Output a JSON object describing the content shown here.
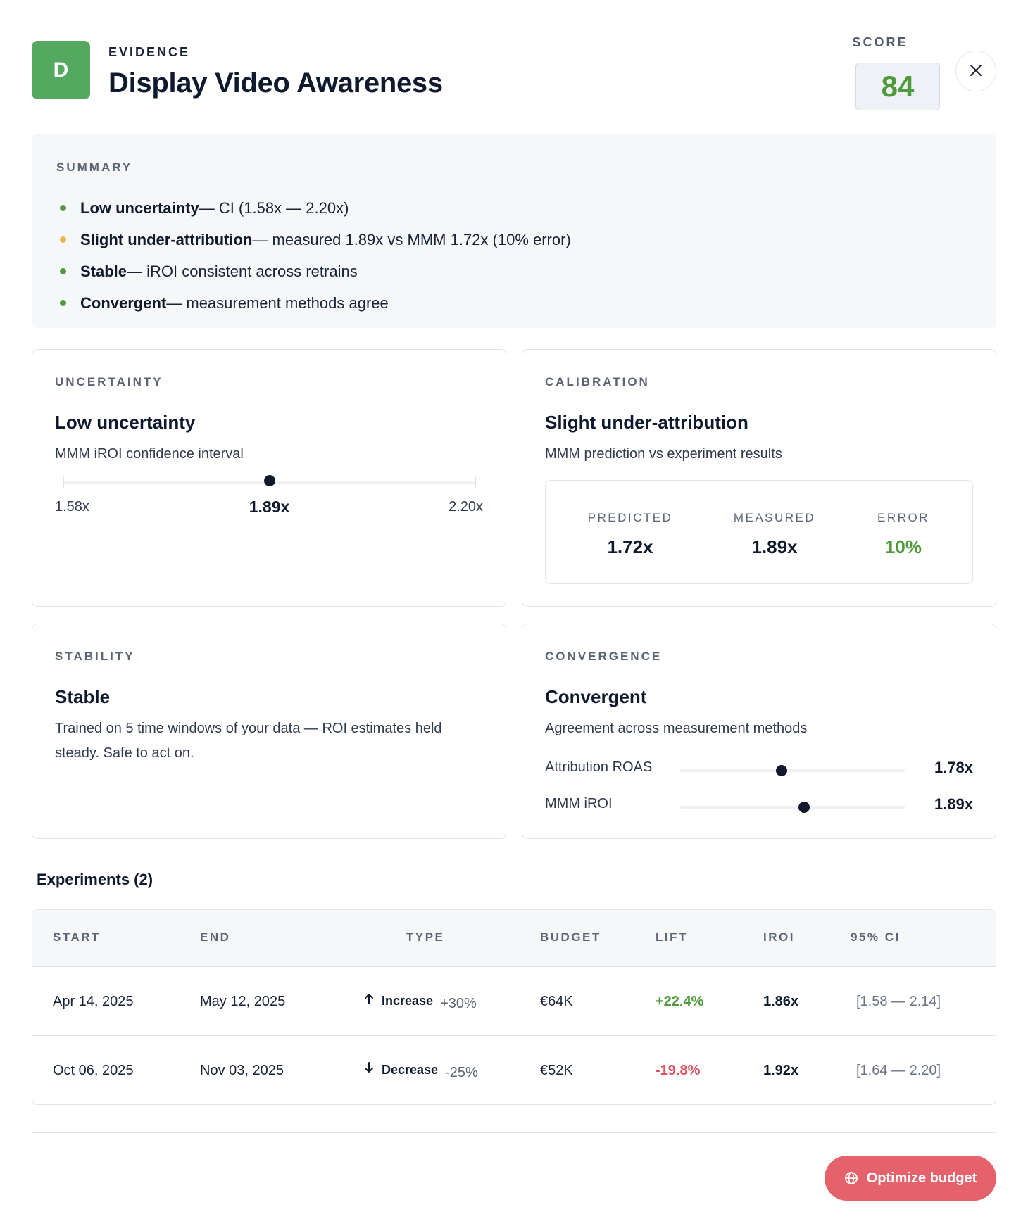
{
  "header": {
    "grade": "D",
    "eyebrow": "EVIDENCE",
    "title": "Display Video Awareness",
    "score_label": "SCORE",
    "score": "84",
    "close_icon": "close-icon"
  },
  "summary": {
    "label": "SUMMARY",
    "items": [
      {
        "bold": "Low uncertainty",
        "rest": " — CI (1.58x — 2.20x)",
        "status": "green"
      },
      {
        "bold": "Slight under-attribution",
        "rest": " — measured 1.89x vs MMM 1.72x (10% error)",
        "status": "amber"
      },
      {
        "bold": "Stable",
        "rest": " — iROI consistent across retrains",
        "status": "green"
      },
      {
        "bold": "Convergent",
        "rest": " — measurement methods agree",
        "status": "green"
      }
    ]
  },
  "uncertainty": {
    "label": "UNCERTAINTY",
    "title": "Low uncertainty",
    "subtitle": "MMM iROI confidence interval",
    "low": "1.58x",
    "mid": "1.89x",
    "high": "2.20x",
    "low_value": 1.58,
    "mid_value": 1.89,
    "high_value": 2.2
  },
  "calibration": {
    "label": "CALIBRATION",
    "title": "Slight under-attribution",
    "subtitle": "MMM prediction vs experiment results",
    "predicted_label": "PREDICTED",
    "predicted": "1.72x",
    "measured_label": "MEASURED",
    "measured": "1.89x",
    "error_label": "ERROR",
    "error": "10%"
  },
  "stability": {
    "label": "STABILITY",
    "title": "Stable",
    "description": "Trained on 5 time windows of your data — ROI estimates held steady. Safe to act on."
  },
  "convergence": {
    "label": "CONVERGENCE",
    "title": "Convergent",
    "subtitle": "Agreement across measurement methods",
    "rows": [
      {
        "label": "Attribution ROAS",
        "value": "1.78x",
        "position": 0.45
      },
      {
        "label": "MMM iROI",
        "value": "1.89x",
        "position": 0.55
      }
    ]
  },
  "experiments": {
    "title": "Experiments (2)",
    "columns": [
      "START",
      "END",
      "TYPE",
      "BUDGET",
      "LIFT",
      "IROI",
      "95% CI"
    ],
    "rows": [
      {
        "start": "Apr 14, 2025",
        "end": "May 12, 2025",
        "type": "Increase",
        "type_pct": "+30%",
        "direction": "up",
        "budget": "€64K",
        "lift": "+22.4%",
        "iroi": "1.86x",
        "ci": "[1.58 — 2.14]"
      },
      {
        "start": "Oct 06, 2025",
        "end": "Nov 03, 2025",
        "type": "Decrease",
        "type_pct": "-25%",
        "direction": "down",
        "budget": "€52K",
        "lift": "-19.8%",
        "iroi": "1.92x",
        "ci": "[1.64 — 2.20]"
      }
    ]
  },
  "footer": {
    "optimize_label": "Optimize budget",
    "optimize_icon": "globe-icon"
  },
  "colors": {
    "grade_green": "#55a85f",
    "score_green": "#4f9a3c",
    "status_green": "#4f9a3c",
    "status_amber": "#f0b44c",
    "lift_positive": "#4f9a3c",
    "lift_negative": "#e0505c",
    "primary_button": "#e5616b",
    "dot_dark": "#111a2c"
  }
}
